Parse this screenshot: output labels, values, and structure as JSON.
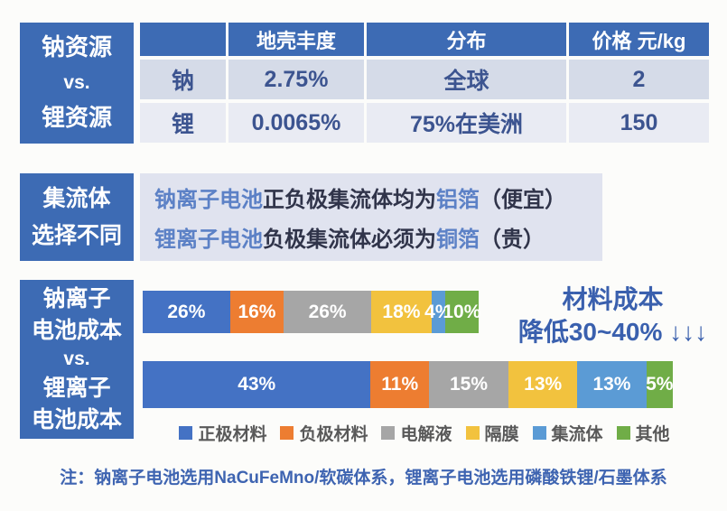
{
  "colors": {
    "primary_blue": "#3d6bb4",
    "panel_bg": "#e0e3ef",
    "table_row1_bg": "#d5dbe8",
    "table_row2_bg": "#e9ebf3",
    "table_text": "#3c5490",
    "accent_text": "#5c81c6",
    "dark_text": "#30344a",
    "annotation_blue": "#3a60ae",
    "note_blue": "#3e64b1",
    "legend_text": "#595959"
  },
  "section_resources": {
    "side_label_lines": [
      "钠资源",
      "vs.",
      "锂资源"
    ],
    "table": {
      "headers": [
        "",
        "地壳丰度",
        "分布",
        "价格 元/kg"
      ],
      "rows": [
        [
          "钠",
          "2.75%",
          "全球",
          "2"
        ],
        [
          "锂",
          "0.0065%",
          "75%在美洲",
          "150"
        ]
      ]
    }
  },
  "section_collector": {
    "side_label_lines": [
      "集流体",
      "选择不同"
    ],
    "lines": [
      [
        {
          "text": "钠离子电池",
          "accent": true
        },
        {
          "text": "正负极集流体均为",
          "accent": false
        },
        {
          "text": "铝箔",
          "accent": true
        },
        {
          "text": "（便宜）",
          "accent": false
        }
      ],
      [
        {
          "text": "锂离子电池",
          "accent": true
        },
        {
          "text": "负极集流体必须为",
          "accent": false
        },
        {
          "text": "铜箔",
          "accent": true
        },
        {
          "text": "（贵）",
          "accent": false
        }
      ]
    ]
  },
  "section_cost": {
    "side_label_lines": [
      "钠离子",
      "电池成本",
      "vs.",
      "锂离子",
      "电池成本"
    ],
    "annotation_line1": "材料成本",
    "annotation_line2": "降低30~40% ↓↓↓"
  },
  "chart_data": {
    "type": "bar",
    "subtype": "horizontal-stacked",
    "unit": "%",
    "categories": [
      "钠离子电池成本",
      "锂离子电池成本"
    ],
    "series": [
      {
        "name": "正极材料",
        "color": "#4472c4",
        "values": [
          26,
          43
        ]
      },
      {
        "name": "负极材料",
        "color": "#ed7d31",
        "values": [
          16,
          11
        ]
      },
      {
        "name": "电解液",
        "color": "#a6a6a6",
        "values": [
          26,
          15
        ]
      },
      {
        "name": "隔膜",
        "color": "#f2c23e",
        "values": [
          18,
          13
        ]
      },
      {
        "name": "集流体",
        "color": "#5b9bd5",
        "values": [
          4,
          13
        ]
      },
      {
        "name": "其他",
        "color": "#70ad47",
        "values": [
          10,
          5
        ]
      }
    ],
    "bar_relative_lengths": [
      0.634,
      1.0
    ],
    "annotation": "材料成本降低30~40%",
    "legend_position": "bottom",
    "data_labels": "inside-white"
  },
  "note": {
    "text": "注：钠离子电池选用NaCuFeMno/软碳体系，锂离子电池选用磷酸铁锂/石墨体系"
  }
}
